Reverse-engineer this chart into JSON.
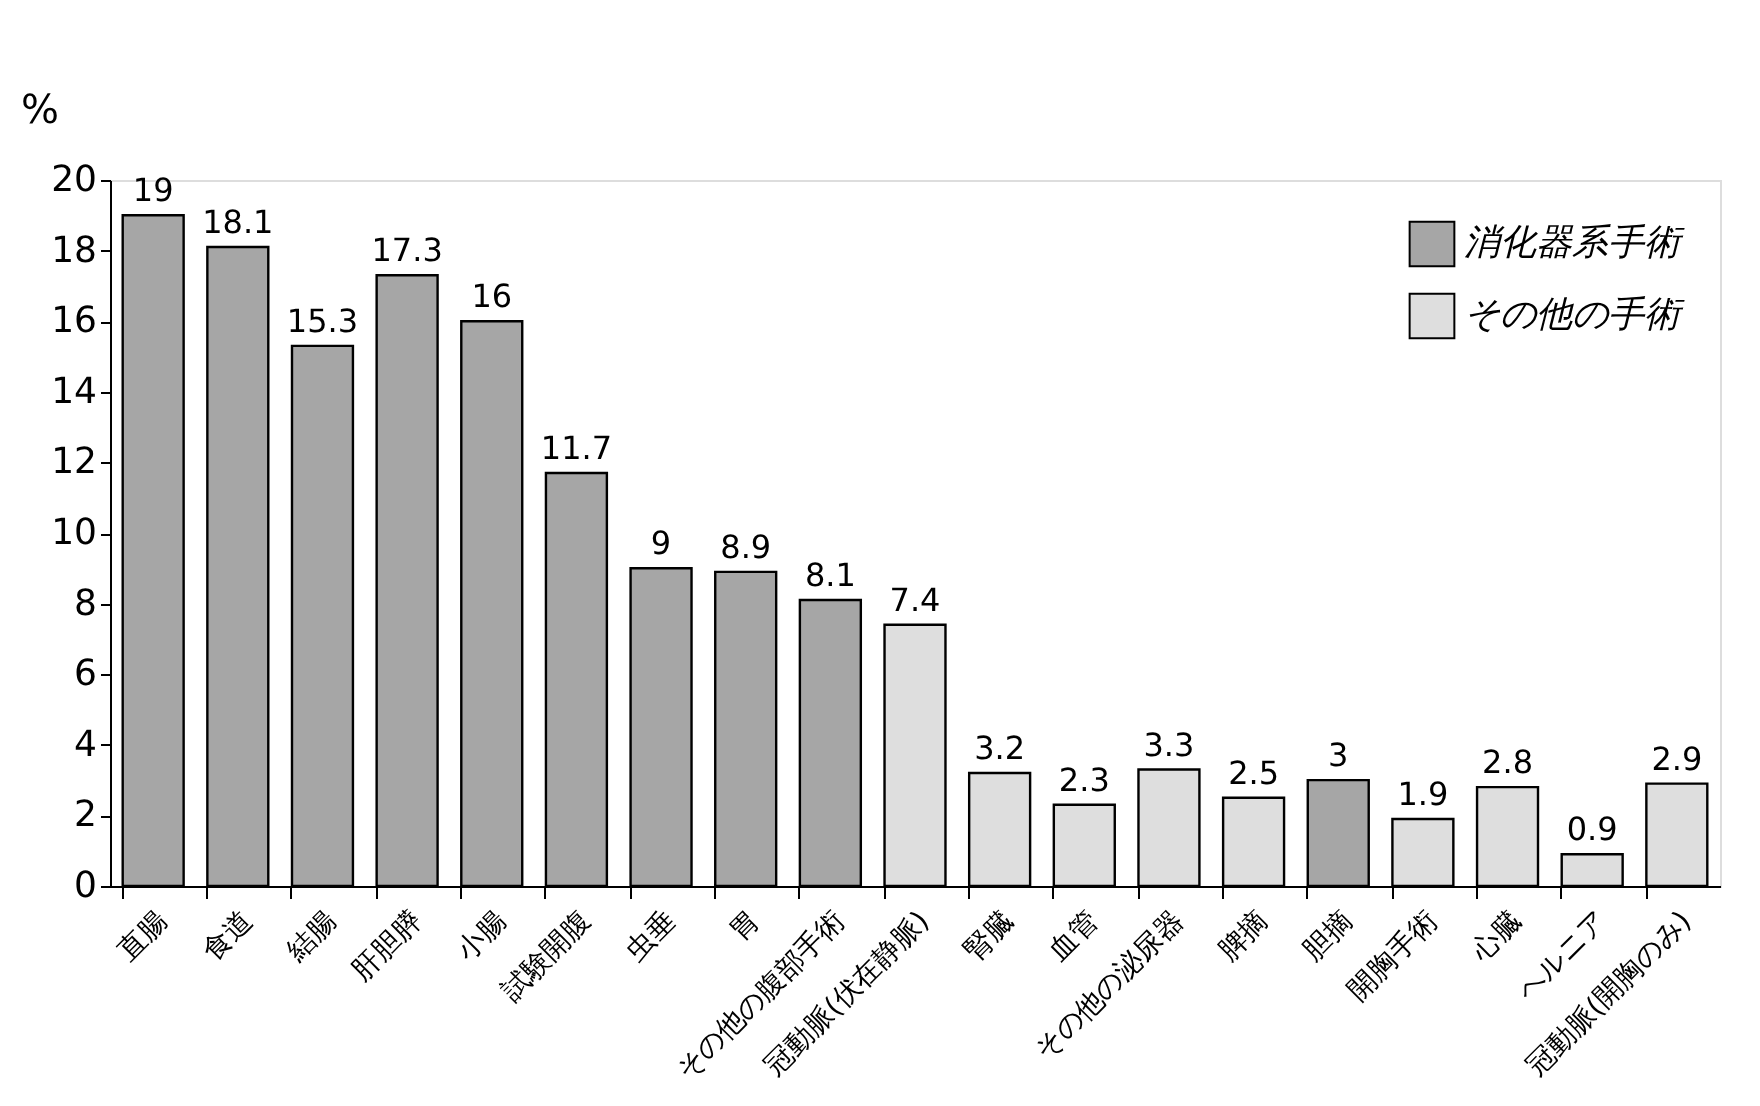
{
  "chart_data": {
    "type": "bar",
    "ylabel": "%",
    "categories": [
      "直腸",
      "食道",
      "結腸",
      "肝胆膵",
      "小腸",
      "試験開腹",
      "虫垂",
      "胃",
      "その他の腹部手術",
      "冠動脈(伏在静脈)",
      "腎臓",
      "血管",
      "その他の泌尿器",
      "脾摘",
      "胆摘",
      "開胸手術",
      "心臓",
      "ヘルニア",
      "冠動脈(開胸のみ)"
    ],
    "series": [
      {
        "name": "消化器系手術",
        "color": "#a6a6a6",
        "values": [
          19,
          18.1,
          15.3,
          17.3,
          16,
          11.7,
          9,
          8.9,
          8.1,
          null,
          null,
          null,
          null,
          null,
          3,
          null,
          null,
          null,
          null
        ]
      },
      {
        "name": "その他の手術",
        "color": "#dedede",
        "values": [
          null,
          null,
          null,
          null,
          null,
          null,
          null,
          null,
          null,
          7.4,
          3.2,
          2.3,
          3.3,
          2.5,
          null,
          1.9,
          2.8,
          0.9,
          2.9
        ]
      }
    ],
    "ylim": [
      0,
      20
    ],
    "yticks": [
      0,
      2,
      4,
      6,
      8,
      10,
      12,
      14,
      16,
      18,
      20
    ],
    "data_labels": true,
    "grid": false,
    "legend": "top right"
  }
}
